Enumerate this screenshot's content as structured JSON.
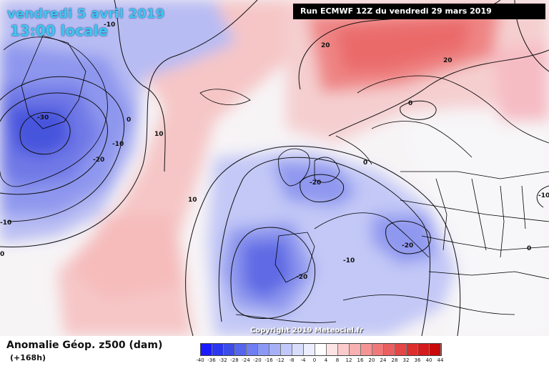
{
  "header": {
    "date": "vendredi 5 avril 2019",
    "local_time": "13:00 locale",
    "run_info": "Run ECMWF 12Z du vendredi 29 mars 2019"
  },
  "footer": {
    "field_name": "Anomalie Géop. z500 (dam)",
    "lead_time": "(+168h)",
    "copyright": "Copyright 2019 Meteociel.fr"
  },
  "legend": {
    "ticks": [
      "-40",
      "-36",
      "-32",
      "-28",
      "-24",
      "-20",
      "-16",
      "-12",
      "-8",
      "-4",
      "0",
      "4",
      "8",
      "12",
      "16",
      "20",
      "24",
      "28",
      "32",
      "36",
      "40",
      "44"
    ],
    "colors": [
      "#1a1aff",
      "#2b36f0",
      "#3b4ce8",
      "#5566ee",
      "#6f7ef2",
      "#8c98f5",
      "#a7b0f7",
      "#c2c8fa",
      "#d9ddfc",
      "#eceefe",
      "#ffffff",
      "#fde4e4",
      "#fbcaca",
      "#f8b0b0",
      "#f59494",
      "#f07a7a",
      "#ea6060",
      "#e44646",
      "#dd2e2e",
      "#d41a1a",
      "#c80a0a"
    ]
  },
  "contour_labels": {
    "a": "-10",
    "b": "-30",
    "c": "-20",
    "d": "-10",
    "e": "0",
    "f": "10",
    "g": "10",
    "h": "-10",
    "i": "20",
    "j": "20",
    "k": "0",
    "l": "0",
    "m": "-20",
    "n": "-20",
    "o": "-20",
    "p": "-10",
    "q": "0",
    "r": "-10",
    "s": "0"
  }
}
